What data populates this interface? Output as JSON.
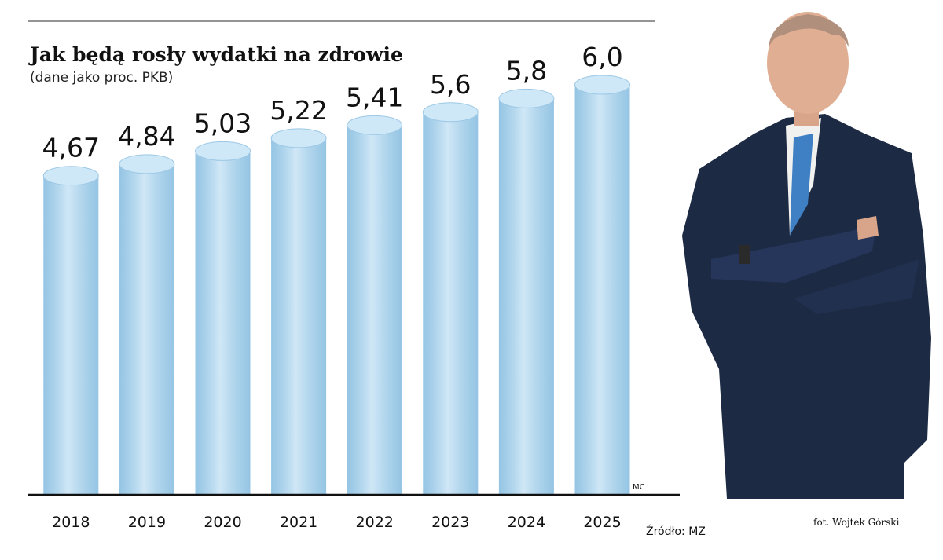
{
  "chart_data": {
    "type": "bar",
    "title": "Jak będą rosły wydatki na zdrowie",
    "subtitle": "(dane jako proc. PKB)",
    "categories": [
      "2018",
      "2019",
      "2020",
      "2021",
      "2022",
      "2023",
      "2024",
      "2025"
    ],
    "values": [
      4.67,
      4.84,
      5.03,
      5.22,
      5.41,
      5.6,
      5.8,
      6.0
    ],
    "value_labels": [
      "4,67",
      "4,84",
      "5,03",
      "5,22",
      "5,41",
      "5,6",
      "5,8",
      "6,0"
    ],
    "color": "#a9d4ef",
    "author_mark": "MC",
    "source": "Źródło: MZ",
    "photo_credit": "fot. Wojtek Górski"
  }
}
